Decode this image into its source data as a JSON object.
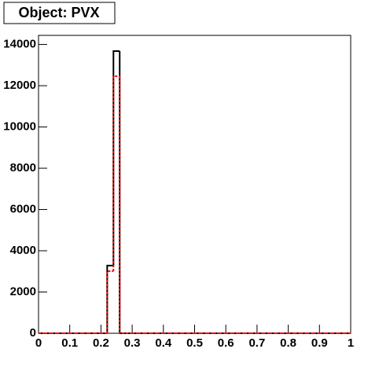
{
  "chart_data": {
    "type": "histogram",
    "title": "Object: PVX",
    "bins": [
      0,
      0.02,
      0.04,
      0.06,
      0.08,
      0.1,
      0.12,
      0.14,
      0.16,
      0.18,
      0.2,
      0.22,
      0.24,
      0.26,
      0.28,
      0.3,
      0.32,
      0.34,
      0.36,
      0.38,
      0.4,
      0.42,
      0.44,
      0.46,
      0.48,
      0.5,
      0.52,
      0.54,
      0.56,
      0.58,
      0.6,
      0.62,
      0.64,
      0.66,
      0.68,
      0.7,
      0.72,
      0.74,
      0.76,
      0.78,
      0.8,
      0.82,
      0.84,
      0.86,
      0.88,
      0.9,
      0.92,
      0.94,
      0.96,
      0.98,
      1
    ],
    "series": [
      {
        "color": "#000000",
        "dashed": false,
        "values": [
          0,
          0,
          0,
          0,
          0,
          0,
          0,
          0,
          0,
          0,
          0,
          3280,
          13680,
          0,
          0,
          0,
          0,
          0,
          0,
          0,
          0,
          0,
          0,
          0,
          0,
          0,
          0,
          0,
          0,
          0,
          0,
          0,
          0,
          0,
          0,
          0,
          0,
          0,
          0,
          0,
          0,
          0,
          0,
          0,
          0,
          0,
          0,
          0,
          0,
          0
        ]
      },
      {
        "color": "#ff0000",
        "dashed": true,
        "values": [
          0,
          0,
          0,
          0,
          0,
          0,
          0,
          0,
          0,
          0,
          0,
          3010,
          12460,
          0,
          0,
          0,
          0,
          0,
          0,
          0,
          0,
          0,
          0,
          0,
          0,
          0,
          0,
          0,
          0,
          0,
          0,
          0,
          0,
          0,
          0,
          0,
          0,
          0,
          0,
          0,
          0,
          0,
          0,
          0,
          0,
          0,
          0,
          0,
          0,
          0
        ]
      }
    ],
    "xlim": [
      0,
      1
    ],
    "xticks": [
      0,
      0.1,
      0.2,
      0.3,
      0.4,
      0.5,
      0.6,
      0.7,
      0.8,
      0.9,
      1
    ],
    "ylim": [
      0,
      14440
    ],
    "yticks": [
      0,
      2000,
      4000,
      6000,
      8000,
      10000,
      12000,
      14000
    ],
    "grid": false
  }
}
